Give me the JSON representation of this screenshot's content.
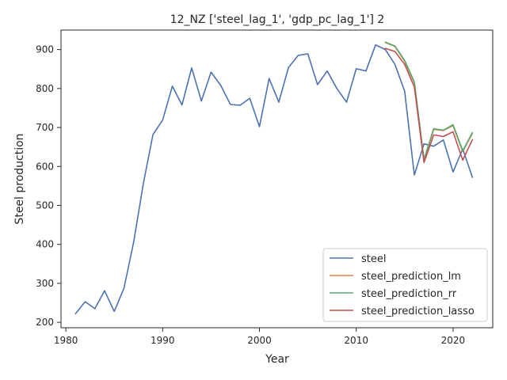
{
  "chart_data": {
    "type": "line",
    "title": "12_NZ ['steel_lag_1', 'gdp_pc_lag_1'] 2",
    "xlabel": "Year",
    "ylabel": "Steel production",
    "xlim": [
      1979.5,
      2024.1
    ],
    "ylim": [
      186,
      950
    ],
    "xticks": [
      1980,
      1990,
      2000,
      2010,
      2020
    ],
    "yticks": [
      200,
      300,
      400,
      500,
      600,
      700,
      800,
      900
    ],
    "grid": false,
    "legend_position": "lower-right",
    "series": [
      {
        "name": "steel",
        "color": "#4c72b0",
        "x": [
          1981,
          1982,
          1983,
          1984,
          1985,
          1986,
          1987,
          1988,
          1989,
          1990,
          1991,
          1992,
          1993,
          1994,
          1995,
          1996,
          1997,
          1998,
          1999,
          2000,
          2001,
          2002,
          2003,
          2004,
          2005,
          2006,
          2007,
          2008,
          2009,
          2010,
          2011,
          2012,
          2013,
          2014,
          2015,
          2016,
          2017,
          2018,
          2019,
          2020,
          2021,
          2022
        ],
        "y": [
          222,
          253,
          235,
          281,
          228,
          287,
          405,
          555,
          682,
          719,
          806,
          758,
          853,
          768,
          842,
          808,
          759,
          757,
          775,
          702,
          826,
          765,
          854,
          885,
          889,
          810,
          845,
          800,
          765,
          851,
          845,
          912,
          900,
          862,
          793,
          578,
          658,
          652,
          668,
          586,
          645,
          572
        ]
      },
      {
        "name": "steel_prediction_lm",
        "color": "#dd8452",
        "x": [
          2013,
          2014,
          2015,
          2016,
          2017,
          2018,
          2019,
          2020,
          2021,
          2022
        ],
        "y": [
          918,
          908,
          870,
          815,
          617,
          695,
          692,
          705,
          638,
          685
        ]
      },
      {
        "name": "steel_prediction_rr",
        "color": "#55a868",
        "x": [
          2013,
          2014,
          2015,
          2016,
          2017,
          2018,
          2019,
          2020,
          2021,
          2022
        ],
        "y": [
          919,
          909,
          872,
          817,
          618,
          697,
          693,
          707,
          640,
          687
        ]
      },
      {
        "name": "steel_prediction_lasso",
        "color": "#c44e52",
        "x": [
          2013,
          2014,
          2015,
          2016,
          2017,
          2018,
          2019,
          2020,
          2021,
          2022
        ],
        "y": [
          903,
          895,
          862,
          804,
          610,
          681,
          677,
          689,
          616,
          669
        ]
      }
    ]
  }
}
